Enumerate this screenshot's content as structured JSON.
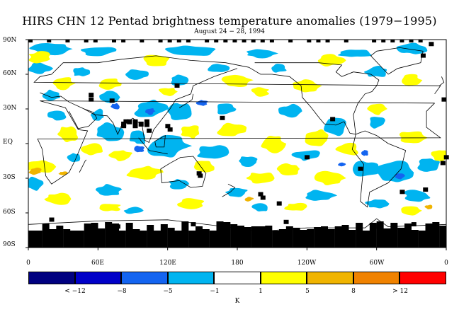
{
  "title": "HIRS CHN 12 Pentad brightness temperature anomalies (1979−1995)",
  "subtitle": "August 24 − 28, 1994",
  "lat_labels": [
    "90N",
    "60N",
    "30N",
    "EQ",
    "30S",
    "60S",
    "90S"
  ],
  "lon_labels": [
    "0",
    "60E",
    "120E",
    "180",
    "120W",
    "60W",
    "0"
  ],
  "colorbar": {
    "colors": [
      "#000080",
      "#0000c8",
      "#1464f0",
      "#00b4f0",
      "#ffffff",
      "#ffff00",
      "#f0b400",
      "#f08200",
      "#ff0000"
    ],
    "labels": [
      "< −12",
      "−8",
      "−5",
      "−1",
      "1",
      "5",
      "8",
      "> 12"
    ],
    "unit": "K"
  },
  "legend_colors": {
    "neg_light": "#00b4f0",
    "neg_mid": "#1464f0",
    "pos_light": "#ffff00",
    "pos_mid": "#f0b400",
    "no_data": "#000000",
    "coast": "#000000"
  }
}
